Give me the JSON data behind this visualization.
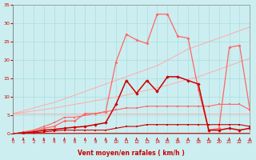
{
  "xlabel": "Vent moyen/en rafales ( km/h )",
  "xlim": [
    0,
    23
  ],
  "ylim": [
    0,
    35
  ],
  "xtick_pos": [
    0,
    1,
    2,
    3,
    4,
    5,
    6,
    7,
    8,
    9,
    10,
    11,
    12,
    13,
    14,
    15,
    16,
    17,
    18,
    19,
    20,
    21,
    22,
    23
  ],
  "ytick_pos": [
    0,
    5,
    10,
    15,
    20,
    25,
    30,
    35
  ],
  "bg_color": "#cceef0",
  "grid_color": "#aadde0",
  "x": [
    0,
    1,
    2,
    3,
    4,
    5,
    6,
    7,
    8,
    9,
    10,
    11,
    12,
    13,
    14,
    15,
    16,
    17,
    18,
    19,
    20,
    21,
    22,
    23
  ],
  "diag_line1": [
    5.5,
    5.8,
    6.2,
    6.6,
    7.0,
    7.5,
    8.0,
    8.5,
    9.0,
    9.5,
    10.0,
    10.5,
    11.2,
    11.8,
    12.5,
    13.2,
    14.0,
    14.8,
    15.5,
    16.5,
    17.5,
    18.5,
    19.5,
    20.5
  ],
  "diag_line2": [
    5.5,
    6.2,
    7.0,
    7.8,
    8.5,
    9.5,
    10.5,
    11.5,
    12.5,
    13.5,
    14.5,
    15.5,
    16.5,
    17.5,
    18.5,
    20.0,
    21.5,
    23.0,
    24.0,
    25.0,
    26.0,
    27.0,
    28.0,
    29.0
  ],
  "flat_line": [
    5.5,
    5.5,
    5.5,
    5.5,
    5.5,
    5.5,
    5.5,
    5.5,
    5.5,
    5.5,
    5.5,
    5.5,
    5.5,
    5.5,
    5.5,
    5.5,
    5.5,
    5.5,
    5.5,
    5.5,
    5.5,
    5.5,
    5.5,
    5.5
  ],
  "med_line": [
    0.0,
    0.5,
    1.0,
    2.0,
    3.0,
    4.5,
    4.5,
    5.0,
    5.5,
    6.0,
    6.5,
    7.0,
    7.0,
    7.5,
    7.5,
    7.5,
    7.5,
    7.5,
    7.5,
    7.5,
    8.0,
    8.0,
    8.0,
    6.5
  ],
  "dark_line": [
    0.0,
    0.3,
    0.5,
    1.0,
    1.2,
    1.5,
    1.8,
    2.0,
    2.5,
    3.0,
    8.0,
    14.5,
    11.0,
    14.5,
    11.5,
    15.5,
    15.5,
    14.5,
    13.5,
    1.0,
    1.0,
    1.5,
    1.0,
    1.5
  ],
  "peak_line": [
    0.0,
    0.3,
    0.8,
    1.5,
    2.0,
    3.5,
    3.5,
    5.5,
    5.5,
    6.0,
    19.5,
    27.0,
    25.5,
    24.5,
    32.5,
    32.5,
    26.5,
    26.0,
    12.0,
    1.0,
    1.5,
    23.5,
    24.0,
    6.5
  ],
  "bottom_line": [
    0.0,
    0.2,
    0.3,
    0.5,
    0.8,
    1.0,
    1.0,
    1.0,
    1.0,
    1.0,
    1.5,
    2.0,
    2.0,
    2.5,
    2.5,
    2.5,
    2.5,
    2.5,
    2.5,
    2.5,
    2.5,
    2.5,
    2.5,
    2.0
  ]
}
